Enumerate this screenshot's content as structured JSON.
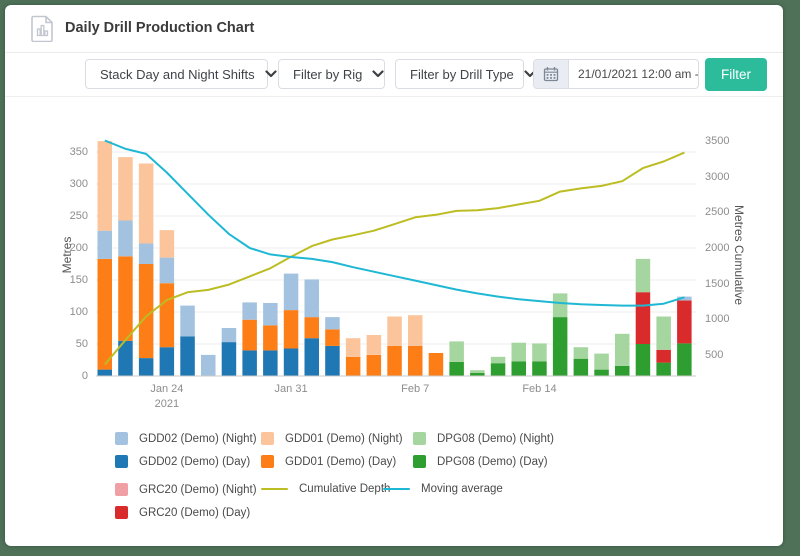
{
  "header": {
    "title": "Daily Drill Production Chart"
  },
  "toolbar": {
    "stack_select": {
      "value": "Stack Day and Night Shifts"
    },
    "rig_select": {
      "value": "Filter by Rig"
    },
    "drill_type_select": {
      "value": "Filter by Drill Type"
    },
    "date_range": {
      "value": "21/01/2021 12:00 am -"
    },
    "filter_button": "Filter"
  },
  "chart_data": {
    "type": "bar",
    "stacked": true,
    "title": "Daily Drill Production Chart",
    "ylabel_left": "Metres",
    "ylabel_right": "Metres Cumulative",
    "ylim_left": [
      0,
      381
    ],
    "ylim_right": [
      0,
      3500
    ],
    "grid": true,
    "y_ticks_left": [
      0,
      50,
      100,
      150,
      200,
      250,
      300,
      350
    ],
    "y_ticks_right": [
      500,
      1000,
      1500,
      2000,
      2500,
      3000,
      3500
    ],
    "x_ticks": [
      {
        "index": 3,
        "label": "Jan 24",
        "sublabel": "2021"
      },
      {
        "index": 9,
        "label": "Jan 31",
        "sublabel": ""
      },
      {
        "index": 15,
        "label": "Feb 7",
        "sublabel": ""
      },
      {
        "index": 21,
        "label": "Feb 14",
        "sublabel": ""
      }
    ],
    "series_order": [
      "gdd02_day",
      "gdd01_day",
      "dpg08_day",
      "grc20_day",
      "gdd02_night",
      "gdd01_night",
      "dpg08_night",
      "grc20_night"
    ],
    "series_colors": {
      "gdd02_day": "#1f77b4",
      "gdd02_night": "#a3c2e0",
      "gdd01_day": "#fd7e17",
      "gdd01_night": "#fcc49a",
      "dpg08_day": "#2e9e30",
      "dpg08_night": "#a5d6a0",
      "grc20_day": "#d92b2b",
      "grc20_night": "#f0a0a5"
    },
    "bars": [
      {
        "gdd02_day": 10,
        "gdd01_day": 173,
        "gdd02_night": 44,
        "gdd01_night": 140
      },
      {
        "gdd02_day": 55,
        "gdd01_day": 132,
        "gdd02_night": 56,
        "gdd01_night": 99
      },
      {
        "gdd02_day": 28,
        "gdd01_day": 147,
        "gdd02_night": 32,
        "gdd01_night": 125
      },
      {
        "gdd02_day": 45,
        "gdd01_day": 100,
        "gdd02_night": 40,
        "gdd01_night": 43
      },
      {
        "gdd02_day": 62,
        "gdd02_night": 48
      },
      {
        "gdd02_night": 33
      },
      {
        "gdd02_day": 53,
        "gdd02_night": 22
      },
      {
        "gdd02_day": 40,
        "gdd01_day": 48,
        "gdd02_night": 27
      },
      {
        "gdd02_day": 40,
        "gdd01_day": 39,
        "gdd02_night": 35
      },
      {
        "gdd02_day": 43,
        "gdd01_day": 60,
        "gdd02_night": 57
      },
      {
        "gdd02_day": 59,
        "gdd01_day": 33,
        "gdd02_night": 59
      },
      {
        "gdd02_day": 47,
        "gdd01_day": 26,
        "gdd02_night": 19
      },
      {
        "gdd01_day": 30,
        "gdd01_night": 29
      },
      {
        "gdd01_day": 33,
        "gdd01_night": 31
      },
      {
        "gdd01_day": 47,
        "gdd01_night": 46
      },
      {
        "gdd01_day": 47,
        "gdd01_night": 48
      },
      {
        "gdd01_day": 36
      },
      {
        "dpg08_day": 22,
        "dpg08_night": 32
      },
      {
        "dpg08_day": 5,
        "dpg08_night": 4
      },
      {
        "dpg08_day": 20,
        "dpg08_night": 10
      },
      {
        "dpg08_day": 23,
        "dpg08_night": 29
      },
      {
        "dpg08_day": 23,
        "dpg08_night": 28
      },
      {
        "dpg08_day": 92,
        "dpg08_night": 37
      },
      {
        "dpg08_day": 27,
        "dpg08_night": 18
      },
      {
        "dpg08_day": 10,
        "dpg08_night": 25
      },
      {
        "dpg08_day": 16,
        "dpg08_night": 50
      },
      {
        "dpg08_day": 50,
        "grc20_day": 81,
        "dpg08_night": 52
      },
      {
        "dpg08_day": 21,
        "grc20_day": 20,
        "dpg08_night": 52
      },
      {
        "dpg08_day": 51,
        "grc20_day": 67,
        "gdd02_night": 6
      }
    ],
    "lines": [
      {
        "name": "Cumulative Depth",
        "axis": "right",
        "color": "#bcbd22",
        "values": [
          367,
          709,
          1041,
          1269,
          1379,
          1412,
          1487,
          1602,
          1716,
          1876,
          2027,
          2119,
          2178,
          2242,
          2335,
          2430,
          2466,
          2520,
          2529,
          2559,
          2611,
          2662,
          2791,
          2836,
          2871,
          2937,
          3120,
          3213,
          3337
        ]
      },
      {
        "name": "Moving average",
        "axis": "left",
        "color": "#1fb8d4",
        "values": [
          368,
          355,
          347,
          318,
          285,
          252,
          222,
          200,
          190,
          186,
          183,
          178,
          170,
          163,
          156,
          149,
          142,
          135,
          129,
          124,
          120,
          117,
          114,
          112,
          111,
          110,
          110,
          113,
          123
        ]
      }
    ]
  },
  "legend": {
    "rows": [
      [
        {
          "swatch": "box",
          "color": "#a3c2e0",
          "label": "GDD02 (Demo) (Night)"
        },
        {
          "swatch": "box",
          "color": "#fcc49a",
          "label": "GDD01 (Demo) (Night)"
        },
        {
          "swatch": "box",
          "color": "#a5d6a0",
          "label": "DPG08 (Demo) (Night)"
        }
      ],
      [
        {
          "swatch": "box",
          "color": "#1f77b4",
          "label": "GDD02 (Demo) (Day)"
        },
        {
          "swatch": "box",
          "color": "#fd7e17",
          "label": "GDD01 (Demo) (Day)"
        },
        {
          "swatch": "box",
          "color": "#2e9e30",
          "label": "DPG08 (Demo) (Day)"
        }
      ],
      [
        {
          "swatch": "box",
          "color": "#f0a0a5",
          "label": "GRC20 (Demo) (Night)"
        },
        {
          "swatch": "line",
          "color": "#bcbd22",
          "label": "Cumulative Depth"
        },
        {
          "swatch": "line",
          "color": "#1fb8d4",
          "label": "Moving average"
        }
      ],
      [
        {
          "swatch": "box",
          "color": "#d92b2b",
          "label": "GRC20 (Demo) (Day)"
        }
      ]
    ]
  }
}
